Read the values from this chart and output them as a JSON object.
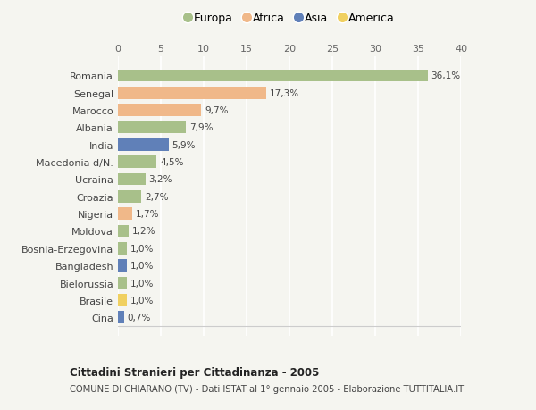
{
  "countries": [
    "Romania",
    "Senegal",
    "Marocco",
    "Albania",
    "India",
    "Macedonia d/N.",
    "Ucraina",
    "Croazia",
    "Nigeria",
    "Moldova",
    "Bosnia-Erzegovina",
    "Bangladesh",
    "Bielorussia",
    "Brasile",
    "Cina"
  ],
  "values": [
    36.1,
    17.3,
    9.7,
    7.9,
    5.9,
    4.5,
    3.2,
    2.7,
    1.7,
    1.2,
    1.0,
    1.0,
    1.0,
    1.0,
    0.7
  ],
  "labels": [
    "36,1%",
    "17,3%",
    "9,7%",
    "7,9%",
    "5,9%",
    "4,5%",
    "3,2%",
    "2,7%",
    "1,7%",
    "1,2%",
    "1,0%",
    "1,0%",
    "1,0%",
    "1,0%",
    "0,7%"
  ],
  "continents": [
    "Europa",
    "Africa",
    "Africa",
    "Europa",
    "Asia",
    "Europa",
    "Europa",
    "Europa",
    "Africa",
    "Europa",
    "Europa",
    "Asia",
    "Europa",
    "America",
    "Asia"
  ],
  "continent_colors": {
    "Europa": "#a8c08a",
    "Africa": "#f0b889",
    "Asia": "#6080b8",
    "America": "#f0d060"
  },
  "legend_order": [
    "Europa",
    "Africa",
    "Asia",
    "America"
  ],
  "xlim": [
    0,
    40
  ],
  "xticks": [
    0,
    5,
    10,
    15,
    20,
    25,
    30,
    35,
    40
  ],
  "title": "Cittadini Stranieri per Cittadinanza - 2005",
  "subtitle": "COMUNE DI CHIARANO (TV) - Dati ISTAT al 1° gennaio 2005 - Elaborazione TUTTITALIA.IT",
  "background_color": "#f5f5f0",
  "bar_height": 0.7
}
